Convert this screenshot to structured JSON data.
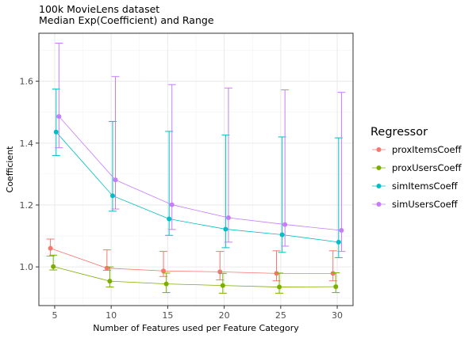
{
  "chart_data": {
    "type": "line",
    "title": "100k MovieLens dataset",
    "subtitle": "Median Exp(Coefficient) and Range",
    "xlabel": "Number of Features used per Feature Category",
    "ylabel": "Coefficient",
    "x": [
      5,
      10,
      15,
      20,
      25,
      30
    ],
    "xticks": [
      "5",
      "10",
      "15",
      "20",
      "25",
      "30"
    ],
    "yticks": [
      "1.0",
      "1.2",
      "1.4",
      "1.6"
    ],
    "xlim": [
      3.6,
      31.4
    ],
    "ylim": [
      0.875,
      1.755
    ],
    "grid": true,
    "legend": {
      "title": "Regressor",
      "position": "right"
    },
    "series": [
      {
        "name": "proxItemsCoeff",
        "color": "#F8766D",
        "dodge": -0.375,
        "values": [
          1.06,
          0.996,
          0.987,
          0.984,
          0.979,
          0.979
        ],
        "lower": [
          1.035,
          0.989,
          0.969,
          0.958,
          0.955,
          0.955
        ],
        "upper": [
          1.09,
          1.055,
          1.05,
          1.05,
          1.052,
          1.052
        ]
      },
      {
        "name": "proxUsersCoeff",
        "color": "#7CAE00",
        "dodge": -0.125,
        "values": [
          1.001,
          0.954,
          0.945,
          0.94,
          0.935,
          0.936
        ],
        "lower": [
          0.99,
          0.935,
          0.917,
          0.915,
          0.915,
          0.917
        ],
        "upper": [
          1.038,
          1.0,
          0.98,
          0.979,
          0.98,
          0.981
        ]
      },
      {
        "name": "simItemsCoeff",
        "color": "#00BFC4",
        "dodge": 0.125,
        "values": [
          1.436,
          1.23,
          1.155,
          1.122,
          1.104,
          1.08
        ],
        "lower": [
          1.36,
          1.18,
          1.102,
          1.062,
          1.047,
          1.03
        ],
        "upper": [
          1.575,
          1.47,
          1.438,
          1.426,
          1.42,
          1.417
        ]
      },
      {
        "name": "simUsersCoeff",
        "color": "#C77CFF",
        "dodge": 0.375,
        "values": [
          1.486,
          1.281,
          1.201,
          1.159,
          1.137,
          1.118
        ],
        "lower": [
          1.385,
          1.187,
          1.121,
          1.08,
          1.067,
          1.05
        ],
        "upper": [
          1.723,
          1.615,
          1.589,
          1.578,
          1.572,
          1.564
        ]
      }
    ]
  }
}
